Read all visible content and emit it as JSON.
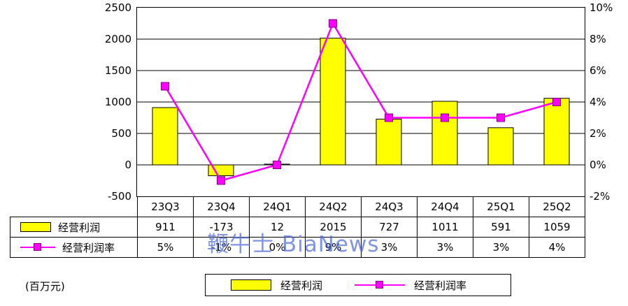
{
  "watermark": "鞭牛士 BiaNews",
  "unit_label": "(百万元)",
  "legend": {
    "bar_label": "经营利润",
    "line_label": "经营利润率"
  },
  "colors": {
    "bar_fill": "#ffff00",
    "bar_stroke": "#000000",
    "line": "#ff00ff",
    "marker_stroke": "#800080",
    "watermark": "#4d6cd9"
  },
  "chart_data": {
    "type": "bar+line",
    "title": "",
    "categories": [
      "23Q3",
      "23Q4",
      "24Q1",
      "24Q2",
      "24Q3",
      "24Q4",
      "25Q1",
      "25Q2"
    ],
    "series": [
      {
        "name": "经营利润",
        "type": "bar",
        "axis": "left",
        "values": [
          911,
          -173,
          12,
          2015,
          727,
          1011,
          591,
          1059
        ],
        "color": "#ffff00"
      },
      {
        "name": "经营利润率",
        "type": "line",
        "axis": "right",
        "values_pct": [
          5,
          -1,
          0,
          9,
          3,
          3,
          3,
          4
        ],
        "display": [
          "5%",
          "-1%",
          "0%",
          "9%",
          "3%",
          "3%",
          "3%",
          "4%"
        ],
        "color": "#ff00ff"
      }
    ],
    "left_axis": {
      "min": -500,
      "max": 2500,
      "step": 500,
      "ticks": [
        "2500",
        "2000",
        "1500",
        "1000",
        "500",
        "0",
        "-500"
      ]
    },
    "right_axis": {
      "min": -2,
      "max": 10,
      "step": 2,
      "ticks": [
        "10%",
        "8%",
        "6%",
        "4%",
        "2%",
        "0%",
        "-2%"
      ]
    },
    "grid": true,
    "legend_position": "bottom"
  },
  "table": {
    "rows": [
      {
        "label": "经营利润",
        "values": [
          "911",
          "-173",
          "12",
          "2015",
          "727",
          "1011",
          "591",
          "1059"
        ]
      },
      {
        "label": "经营利润率",
        "values": [
          "5%",
          "-1%",
          "0%",
          "9%",
          "3%",
          "3%",
          "3%",
          "4%"
        ]
      }
    ]
  }
}
